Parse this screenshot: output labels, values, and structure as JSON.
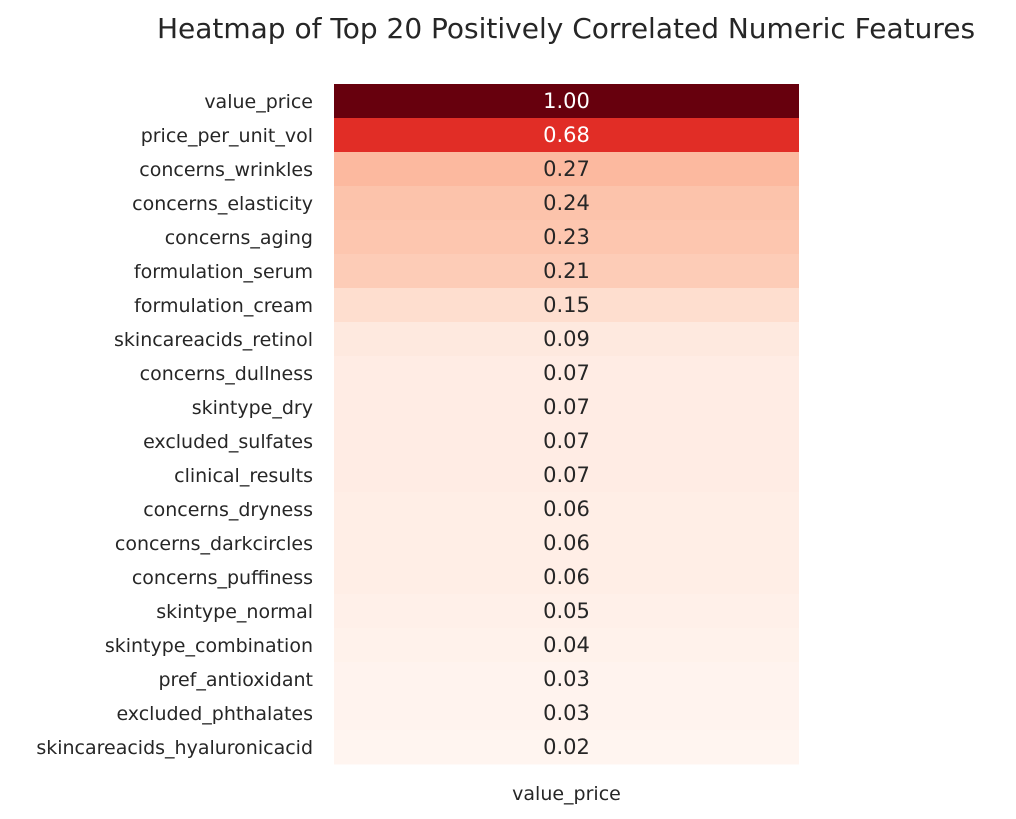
{
  "chart_data": {
    "type": "heatmap",
    "title": "Heatmap of Top 20 Positively Correlated Numeric Features",
    "xlabel": "",
    "ylabel": "",
    "columns": [
      "value_price"
    ],
    "rows": [
      "value_price",
      "price_per_unit_vol",
      "concerns_wrinkles",
      "concerns_elasticity",
      "concerns_aging",
      "formulation_serum",
      "formulation_cream",
      "skincareacids_retinol",
      "concerns_dullness",
      "skintype_dry",
      "excluded_sulfates",
      "clinical_results",
      "concerns_dryness",
      "concerns_darkcircles",
      "concerns_puffiness",
      "skintype_normal",
      "skintype_combination",
      "pref_antioxidant",
      "excluded_phthalates",
      "skincareacids_hyaluronicacid"
    ],
    "values": [
      1.0,
      0.68,
      0.27,
      0.24,
      0.23,
      0.21,
      0.15,
      0.09,
      0.07,
      0.07,
      0.07,
      0.07,
      0.06,
      0.06,
      0.06,
      0.05,
      0.04,
      0.03,
      0.03,
      0.02
    ],
    "value_labels": [
      "1.00",
      "0.68",
      "0.27",
      "0.24",
      "0.23",
      "0.21",
      "0.15",
      "0.09",
      "0.07",
      "0.07",
      "0.07",
      "0.07",
      "0.06",
      "0.06",
      "0.06",
      "0.05",
      "0.04",
      "0.03",
      "0.03",
      "0.02"
    ],
    "colormap": "Reds",
    "annotated": true,
    "colorbar": false
  }
}
